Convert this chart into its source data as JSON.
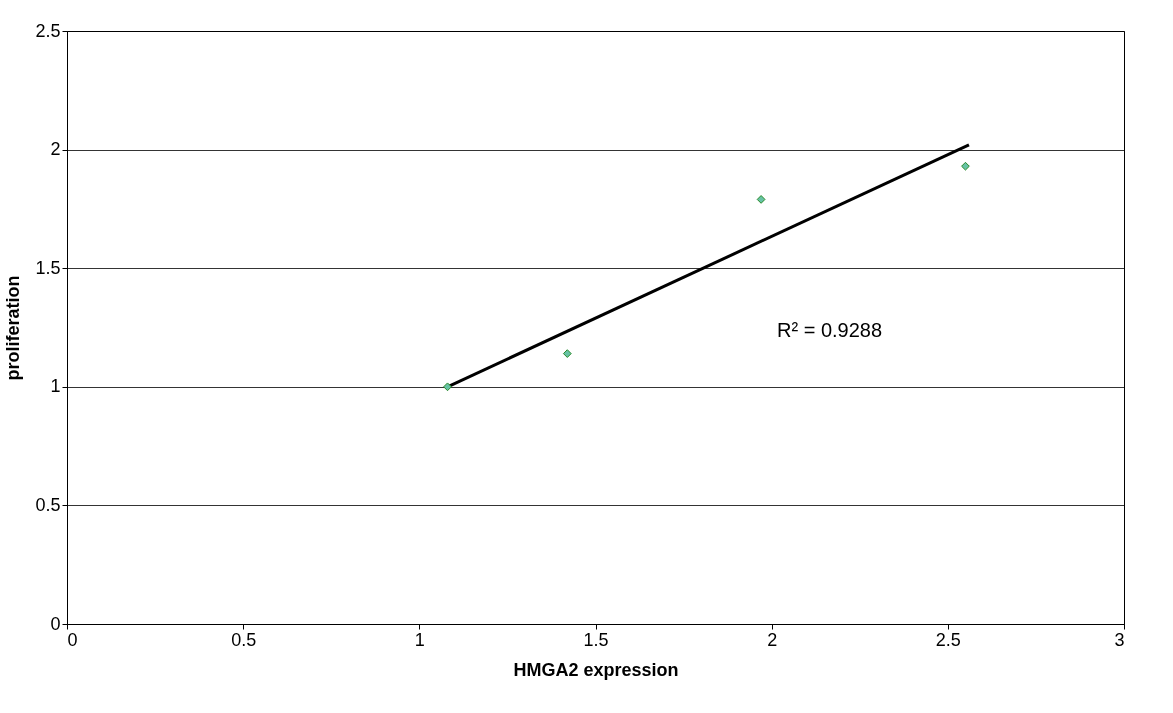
{
  "chart_data": {
    "type": "scatter",
    "xlabel": "HMGA2 expression",
    "ylabel": "proliferation",
    "series": [
      {
        "color": "#66c2a5",
        "x": [
          1.08,
          1.42,
          1.97,
          2.55
        ],
        "values": [
          1.0,
          1.14,
          1.79,
          1.93
        ]
      },
      {
        "type": "line",
        "marker": "none",
        "color": "#000000",
        "x": [
          1.08,
          2.56
        ],
        "values": [
          1.0,
          2.02
        ]
      }
    ],
    "xlim": [
      0,
      3
    ],
    "xticks": [
      0,
      0.5,
      1,
      1.5,
      2,
      2.5,
      3
    ],
    "ylim": [
      0,
      2.5
    ],
    "yticks": [
      0,
      0.5,
      1,
      1.5,
      2,
      2.5
    ],
    "grid": "y",
    "marker": "diamond",
    "annotations": [
      "R² = 0.9288"
    ]
  }
}
